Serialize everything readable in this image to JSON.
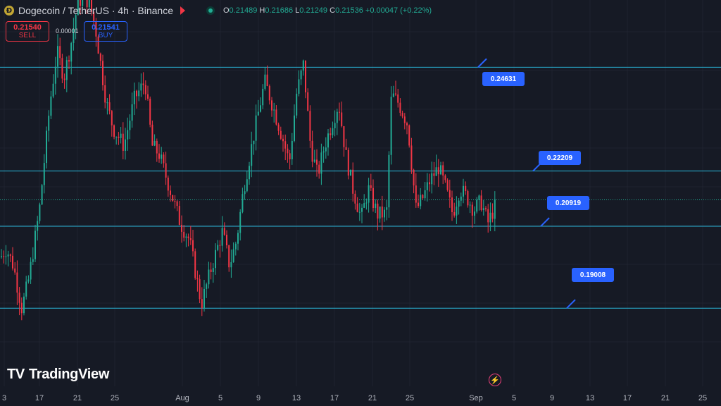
{
  "header": {
    "coin_glyph": "Ð",
    "symbol": "Dogecoin / TetherUS · 4h · Binance",
    "ohlc": {
      "o_label": "O",
      "o": "0.21489",
      "h_label": "H",
      "h": "0.21686",
      "l_label": "L",
      "l": "0.21249",
      "c_label": "C",
      "c": "0.21536",
      "change": "+0.00047 (+0.22%)"
    }
  },
  "trade": {
    "sell_price": "0.21540",
    "sell_label": "SELL",
    "spread": "0.00001",
    "buy_price": "0.21541",
    "buy_label": "BUY"
  },
  "branding": {
    "logo_glyph": "TV",
    "name": "TradingView"
  },
  "icons": {
    "flag": "flag-icon",
    "market": "market-status-icon",
    "bolt": "lightning-icon",
    "coin": "dogecoin-logo-icon"
  },
  "colors": {
    "background": "#161a25",
    "up": "#22ab94",
    "down": "#f23645",
    "level_line": "#29b6d9",
    "label_bg": "#2962ff"
  },
  "chart_data": {
    "type": "candlestick",
    "x_ticks": [
      "3",
      "17",
      "21",
      "25",
      "Aug",
      "5",
      "9",
      "13",
      "17",
      "21",
      "25",
      "Sep",
      "5",
      "9",
      "13",
      "17",
      "21",
      "25"
    ],
    "y_range": [
      0.186,
      0.262
    ],
    "last_price": 0.21536,
    "horizontal_levels": [
      {
        "value": 0.24631,
        "label": "0.24631"
      },
      {
        "value": 0.22209,
        "label": "0.22209"
      },
      {
        "value": 0.20919,
        "label": "0.20919"
      },
      {
        "value": 0.19008,
        "label": "0.19008"
      }
    ],
    "trend_path": [
      [
        0,
        0.202
      ],
      [
        8,
        0.204
      ],
      [
        18,
        0.2
      ],
      [
        30,
        0.19
      ],
      [
        40,
        0.197
      ],
      [
        55,
        0.213
      ],
      [
        70,
        0.238
      ],
      [
        80,
        0.25
      ],
      [
        90,
        0.244
      ],
      [
        100,
        0.252
      ],
      [
        110,
        0.262
      ],
      [
        125,
        0.262
      ],
      [
        135,
        0.255
      ],
      [
        150,
        0.238
      ],
      [
        160,
        0.232
      ],
      [
        175,
        0.228
      ],
      [
        190,
        0.239
      ],
      [
        205,
        0.243
      ],
      [
        215,
        0.228
      ],
      [
        225,
        0.226
      ],
      [
        240,
        0.218
      ],
      [
        255,
        0.21
      ],
      [
        268,
        0.206
      ],
      [
        285,
        0.191
      ],
      [
        300,
        0.2
      ],
      [
        315,
        0.208
      ],
      [
        325,
        0.2
      ],
      [
        335,
        0.206
      ],
      [
        345,
        0.218
      ],
      [
        360,
        0.231
      ],
      [
        375,
        0.243
      ],
      [
        385,
        0.238
      ],
      [
        400,
        0.23
      ],
      [
        410,
        0.224
      ],
      [
        420,
        0.24
      ],
      [
        430,
        0.247
      ],
      [
        440,
        0.228
      ],
      [
        450,
        0.221
      ],
      [
        460,
        0.228
      ],
      [
        470,
        0.233
      ],
      [
        480,
        0.238
      ],
      [
        490,
        0.226
      ],
      [
        500,
        0.218
      ],
      [
        512,
        0.211
      ],
      [
        522,
        0.218
      ],
      [
        535,
        0.212
      ],
      [
        548,
        0.212
      ],
      [
        555,
        0.24
      ],
      [
        565,
        0.238
      ],
      [
        578,
        0.233
      ],
      [
        590,
        0.213
      ],
      [
        600,
        0.216
      ],
      [
        610,
        0.22
      ],
      [
        622,
        0.223
      ],
      [
        632,
        0.218
      ],
      [
        642,
        0.212
      ],
      [
        652,
        0.218
      ],
      [
        662,
        0.216
      ],
      [
        672,
        0.213
      ],
      [
        682,
        0.215
      ],
      [
        692,
        0.21
      ],
      [
        705,
        0.215
      ]
    ]
  }
}
